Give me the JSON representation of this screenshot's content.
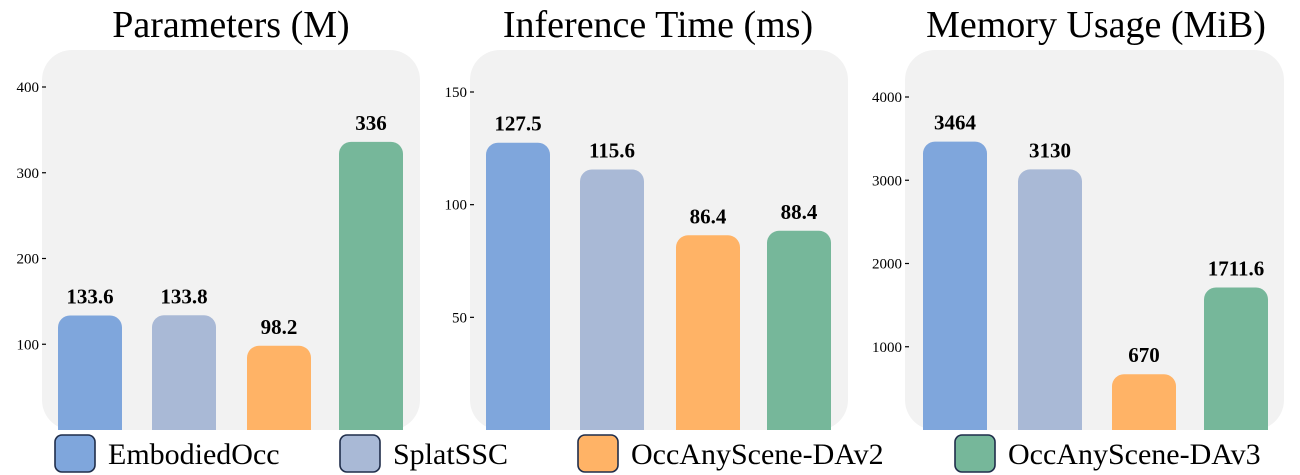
{
  "chart_data": [
    {
      "type": "bar",
      "title": "Parameters (M)",
      "categories": [
        "EmbodiedOcc",
        "SplatSSC",
        "OccAnyScene-DAv2",
        "OccAnyScene-DAv3"
      ],
      "values": [
        133.6,
        133.8,
        98.2,
        336
      ],
      "value_labels": [
        "133.6",
        "133.8",
        "98.2",
        "336"
      ],
      "yticks": [
        100,
        200,
        300,
        400
      ],
      "ytick_labels": [
        "100",
        "200",
        "300",
        "400"
      ],
      "ylim": [
        0,
        400
      ],
      "xlabel": "",
      "ylabel": "",
      "grid": false
    },
    {
      "type": "bar",
      "title": "Inference Time (ms)",
      "categories": [
        "EmbodiedOcc",
        "SplatSSC",
        "OccAnyScene-DAv2",
        "OccAnyScene-DAv3"
      ],
      "values": [
        127.5,
        115.6,
        86.4,
        88.4
      ],
      "value_labels": [
        "127.5",
        "115.6",
        "86.4",
        "88.4"
      ],
      "yticks": [
        50,
        100,
        150
      ],
      "ytick_labels": [
        "50",
        "100",
        "150"
      ],
      "ylim": [
        0,
        150
      ],
      "xlabel": "",
      "ylabel": "",
      "grid": false
    },
    {
      "type": "bar",
      "title": "Memory Usage (MiB)",
      "categories": [
        "EmbodiedOcc",
        "SplatSSC",
        "OccAnyScene-DAv2",
        "OccAnyScene-DAv3"
      ],
      "values": [
        3464,
        3130,
        670,
        1711.6
      ],
      "value_labels": [
        "3464",
        "3130",
        "670",
        "1711.6"
      ],
      "yticks": [
        1000,
        2000,
        3000,
        4000
      ],
      "ytick_labels": [
        "1000",
        "2000",
        "3000",
        "4000"
      ],
      "ylim": [
        0,
        4000
      ],
      "xlabel": "",
      "ylabel": "",
      "grid": false
    }
  ],
  "legend": {
    "position": "bottom",
    "entries": [
      {
        "label": "EmbodiedOcc",
        "color": "#7fa6dc"
      },
      {
        "label": "SplatSSC",
        "color": "#a9b9d6"
      },
      {
        "label": "OccAnyScene-DAv2",
        "color": "#ffb366"
      },
      {
        "label": "OccAnyScene-DAv3",
        "color": "#76b79a"
      }
    ]
  },
  "style": {
    "panel_background": "#f2f2f2",
    "legend_border": "#1f2d4a"
  }
}
